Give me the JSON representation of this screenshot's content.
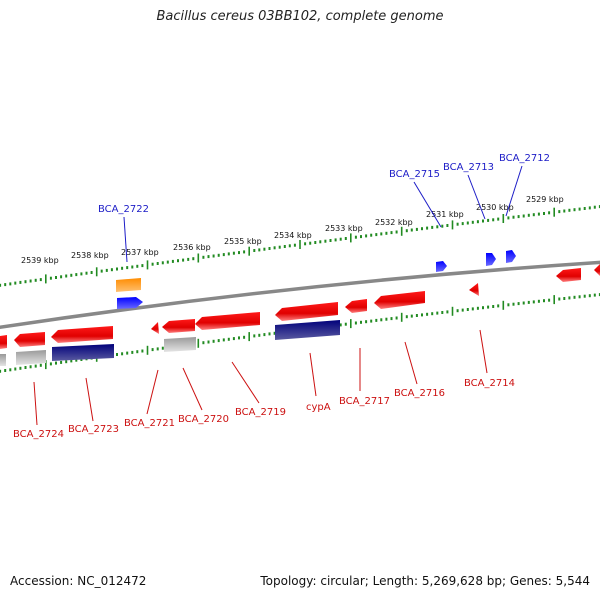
{
  "title": "Bacillus cereus 03BB102, complete genome",
  "footer": {
    "accession": "Accession: NC_012472",
    "topology": "Topology: circular; Length: 5,269,628 bp; Genes: 5,544"
  },
  "colors": {
    "forward_gene": "#ff0000",
    "reverse_gene_dark": "#000080",
    "forward_gene_blue": "#0000ff",
    "orange_gene": "#ff8c00",
    "gray_gene": "#b0b0b0",
    "tick_green": "#228b22",
    "label_blue": "#1d1dc7",
    "label_red": "#cc1111",
    "backbone": "#888888"
  },
  "scale_labels": [
    "2539 kbp",
    "2538 kbp",
    "2537 kbp",
    "2536 kbp",
    "2535 kbp",
    "2534 kbp",
    "2533 kbp",
    "2532 kbp",
    "2531 kbp",
    "2530 kbp",
    "2529 kbp"
  ],
  "top_gene_labels": [
    "BCA_2722",
    "BCA_2715",
    "BCA_2713",
    "BCA_2712"
  ],
  "bottom_gene_labels": [
    "BCA_2724",
    "BCA_2723",
    "BCA_2721",
    "BCA_2720",
    "BCA_2719",
    "cypA",
    "BCA_2717",
    "BCA_2716",
    "BCA_2714"
  ]
}
